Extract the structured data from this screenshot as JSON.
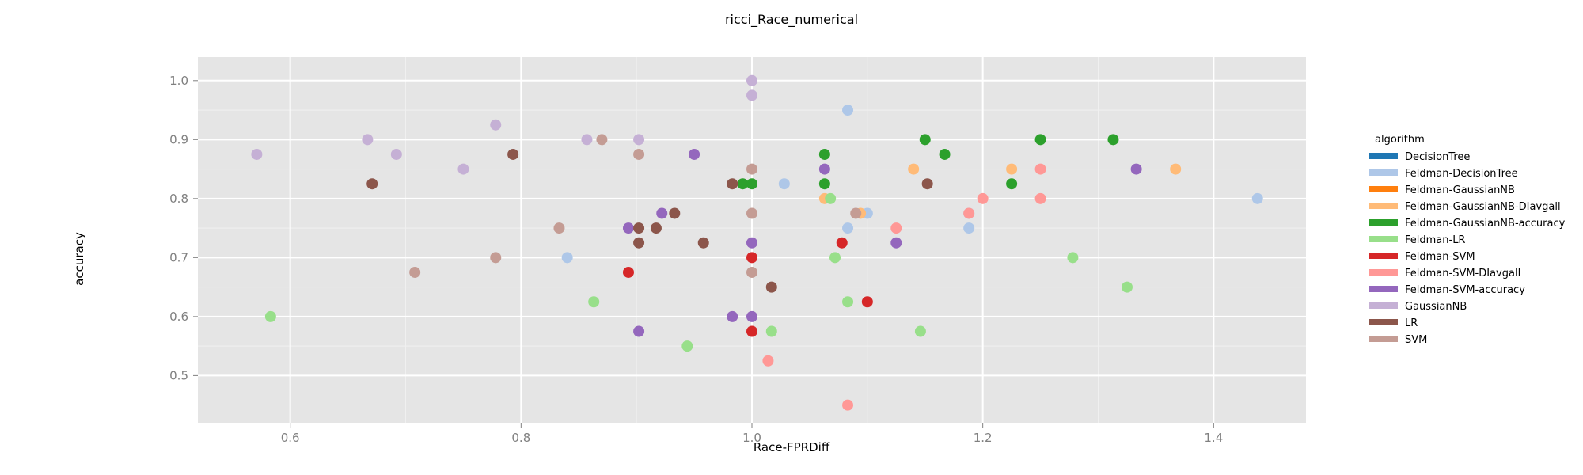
{
  "chart_data": {
    "type": "scatter",
    "title": "ricci_Race_numerical",
    "xlabel": "Race-FPRDiff",
    "ylabel": "accuracy",
    "xlim": [
      0.52,
      1.48
    ],
    "ylim": [
      0.42,
      1.04
    ],
    "xticks": [
      0.6,
      0.8,
      1.0,
      1.2,
      1.4
    ],
    "xtick_labels": [
      "0.6",
      "0.8",
      "1.0",
      "1.2",
      "1.4"
    ],
    "yticks": [
      0.5,
      0.6,
      0.7,
      0.8,
      0.9,
      1.0
    ],
    "ytick_labels": [
      "0.5",
      "0.6",
      "0.7",
      "0.8",
      "0.9",
      "1.0"
    ],
    "grid": true,
    "legend_title": "algorithm",
    "legend_position": "right",
    "series": [
      {
        "name": "DecisionTree",
        "color": "#1f77b4",
        "points": []
      },
      {
        "name": "Feldman-DecisionTree",
        "color": "#aec7e8",
        "points": [
          [
            1.083,
            0.95
          ],
          [
            1.028,
            0.825
          ],
          [
            1.1,
            0.775
          ],
          [
            1.083,
            0.75
          ],
          [
            1.188,
            0.775
          ],
          [
            1.188,
            0.75
          ],
          [
            0.84,
            0.7
          ],
          [
            1.438,
            0.8
          ]
        ]
      },
      {
        "name": "Feldman-GaussianNB",
        "color": "#ff7f0e",
        "points": []
      },
      {
        "name": "Feldman-GaussianNB-DIavgall",
        "color": "#ffbb78",
        "points": [
          [
            1.14,
            0.85
          ],
          [
            1.225,
            0.85
          ],
          [
            1.367,
            0.85
          ],
          [
            1.063,
            0.8
          ],
          [
            1.094,
            0.775
          ]
        ]
      },
      {
        "name": "Feldman-GaussianNB-accuracy",
        "color": "#2ca02c",
        "points": [
          [
            1.15,
            0.9
          ],
          [
            1.25,
            0.9
          ],
          [
            1.313,
            0.9
          ],
          [
            1.063,
            0.875
          ],
          [
            1.167,
            0.875
          ],
          [
            0.992,
            0.825
          ],
          [
            1.0,
            0.825
          ],
          [
            1.063,
            0.825
          ],
          [
            1.225,
            0.825
          ]
        ]
      },
      {
        "name": "Feldman-LR",
        "color": "#98df8a",
        "points": [
          [
            1.068,
            0.8
          ],
          [
            1.072,
            0.7
          ],
          [
            1.278,
            0.7
          ],
          [
            1.325,
            0.65
          ],
          [
            0.863,
            0.625
          ],
          [
            1.083,
            0.625
          ],
          [
            1.017,
            0.575
          ],
          [
            1.146,
            0.575
          ],
          [
            0.583,
            0.6
          ],
          [
            0.944,
            0.55
          ]
        ]
      },
      {
        "name": "Feldman-SVM",
        "color": "#d62728",
        "points": [
          [
            1.078,
            0.725
          ],
          [
            1.0,
            0.7
          ],
          [
            0.893,
            0.675
          ],
          [
            1.1,
            0.625
          ],
          [
            1.0,
            0.575
          ]
        ]
      },
      {
        "name": "Feldman-SVM-DIavgall",
        "color": "#ff9896",
        "points": [
          [
            1.25,
            0.85
          ],
          [
            1.2,
            0.8
          ],
          [
            1.25,
            0.8
          ],
          [
            1.188,
            0.775
          ],
          [
            1.125,
            0.75
          ],
          [
            1.014,
            0.525
          ],
          [
            1.083,
            0.45
          ]
        ]
      },
      {
        "name": "Feldman-SVM-accuracy",
        "color": "#9467bd",
        "points": [
          [
            0.95,
            0.875
          ],
          [
            1.063,
            0.85
          ],
          [
            1.333,
            0.85
          ],
          [
            0.922,
            0.775
          ],
          [
            0.893,
            0.75
          ],
          [
            1.0,
            0.725
          ],
          [
            1.125,
            0.725
          ],
          [
            0.983,
            0.6
          ],
          [
            1.0,
            0.6
          ],
          [
            0.902,
            0.575
          ]
        ]
      },
      {
        "name": "GaussianNB",
        "color": "#c5b0d5",
        "points": [
          [
            1.0,
            1.0
          ],
          [
            1.0,
            0.975
          ],
          [
            0.778,
            0.925
          ],
          [
            0.667,
            0.9
          ],
          [
            0.857,
            0.9
          ],
          [
            0.902,
            0.9
          ],
          [
            0.571,
            0.875
          ],
          [
            0.692,
            0.875
          ],
          [
            0.75,
            0.85
          ]
        ]
      },
      {
        "name": "LR",
        "color": "#8c564b",
        "points": [
          [
            0.793,
            0.875
          ],
          [
            0.671,
            0.825
          ],
          [
            0.983,
            0.825
          ],
          [
            1.152,
            0.825
          ],
          [
            0.902,
            0.75
          ],
          [
            0.917,
            0.75
          ],
          [
            0.933,
            0.775
          ],
          [
            0.902,
            0.725
          ],
          [
            0.958,
            0.725
          ],
          [
            1.017,
            0.65
          ]
        ]
      },
      {
        "name": "SVM",
        "color": "#c49c94",
        "points": [
          [
            0.87,
            0.9
          ],
          [
            0.902,
            0.875
          ],
          [
            1.0,
            0.85
          ],
          [
            1.0,
            0.775
          ],
          [
            1.09,
            0.775
          ],
          [
            0.833,
            0.75
          ],
          [
            0.778,
            0.7
          ],
          [
            0.708,
            0.675
          ],
          [
            1.0,
            0.675
          ]
        ]
      }
    ]
  }
}
